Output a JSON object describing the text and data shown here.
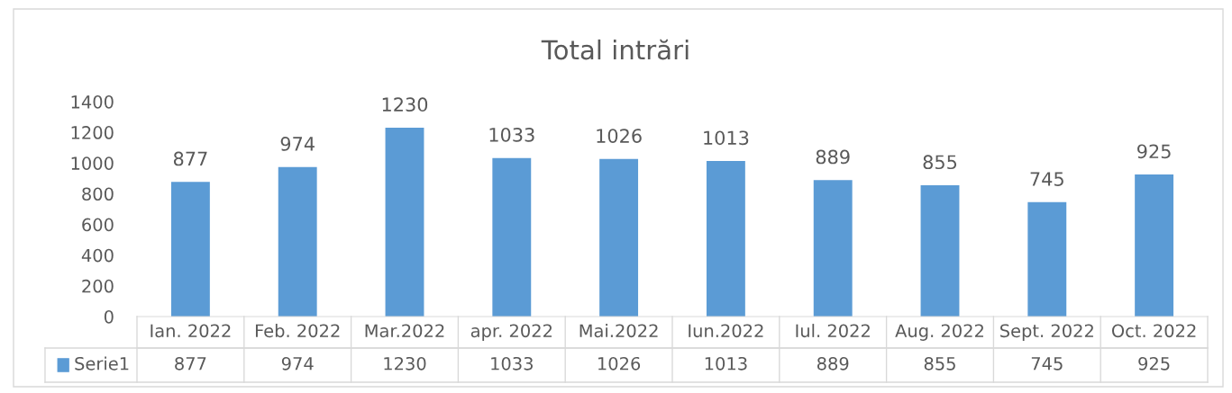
{
  "chart_data": {
    "type": "bar",
    "title": "Total intrări",
    "categories": [
      "Ian. 2022",
      "Feb. 2022",
      "Mar.2022",
      "apr. 2022",
      "Mai.2022",
      "Iun.2022",
      "Iul. 2022",
      "Aug. 2022",
      "Sept. 2022",
      "Oct. 2022"
    ],
    "series": [
      {
        "name": "Serie1",
        "color": "#5b9bd5",
        "values": [
          877,
          974,
          1230,
          1033,
          1026,
          1013,
          889,
          855,
          745,
          925
        ]
      }
    ],
    "ylim": [
      0,
      1400
    ],
    "yticks": [
      0,
      200,
      400,
      600,
      800,
      1000,
      1200,
      1400
    ],
    "annotations": [
      "877",
      "974",
      "1230",
      "1033",
      "1026",
      "1013",
      "889",
      "855",
      "745",
      "925"
    ],
    "data_labels": true,
    "legend": "bottom",
    "grid": false
  }
}
